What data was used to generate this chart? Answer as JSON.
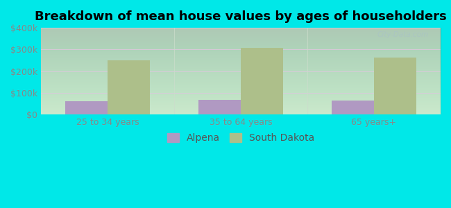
{
  "title": "Breakdown of mean house values by ages of householders",
  "categories": [
    "25 to 34 years",
    "35 to 64 years",
    "65 years+"
  ],
  "alpena_values": [
    60000,
    67000,
    63000
  ],
  "sd_values": [
    250000,
    307000,
    263000
  ],
  "alpena_color": "#b099c2",
  "sd_color": "#adbf8a",
  "ylim": [
    0,
    400000
  ],
  "yticks": [
    0,
    100000,
    200000,
    300000,
    400000
  ],
  "ytick_labels": [
    "$0",
    "$100k",
    "$200k",
    "$300k",
    "$400k"
  ],
  "background_color": "#00e8e8",
  "bar_width": 0.32,
  "legend_labels": [
    "Alpena",
    "South Dakota"
  ],
  "watermark": "City-Data.com",
  "title_fontsize": 13,
  "tick_fontsize": 9,
  "legend_fontsize": 10,
  "grid_color": "#e0d0e0",
  "plot_bg_top": "#eaf5ea",
  "plot_bg_bottom": "#d0ecd8"
}
